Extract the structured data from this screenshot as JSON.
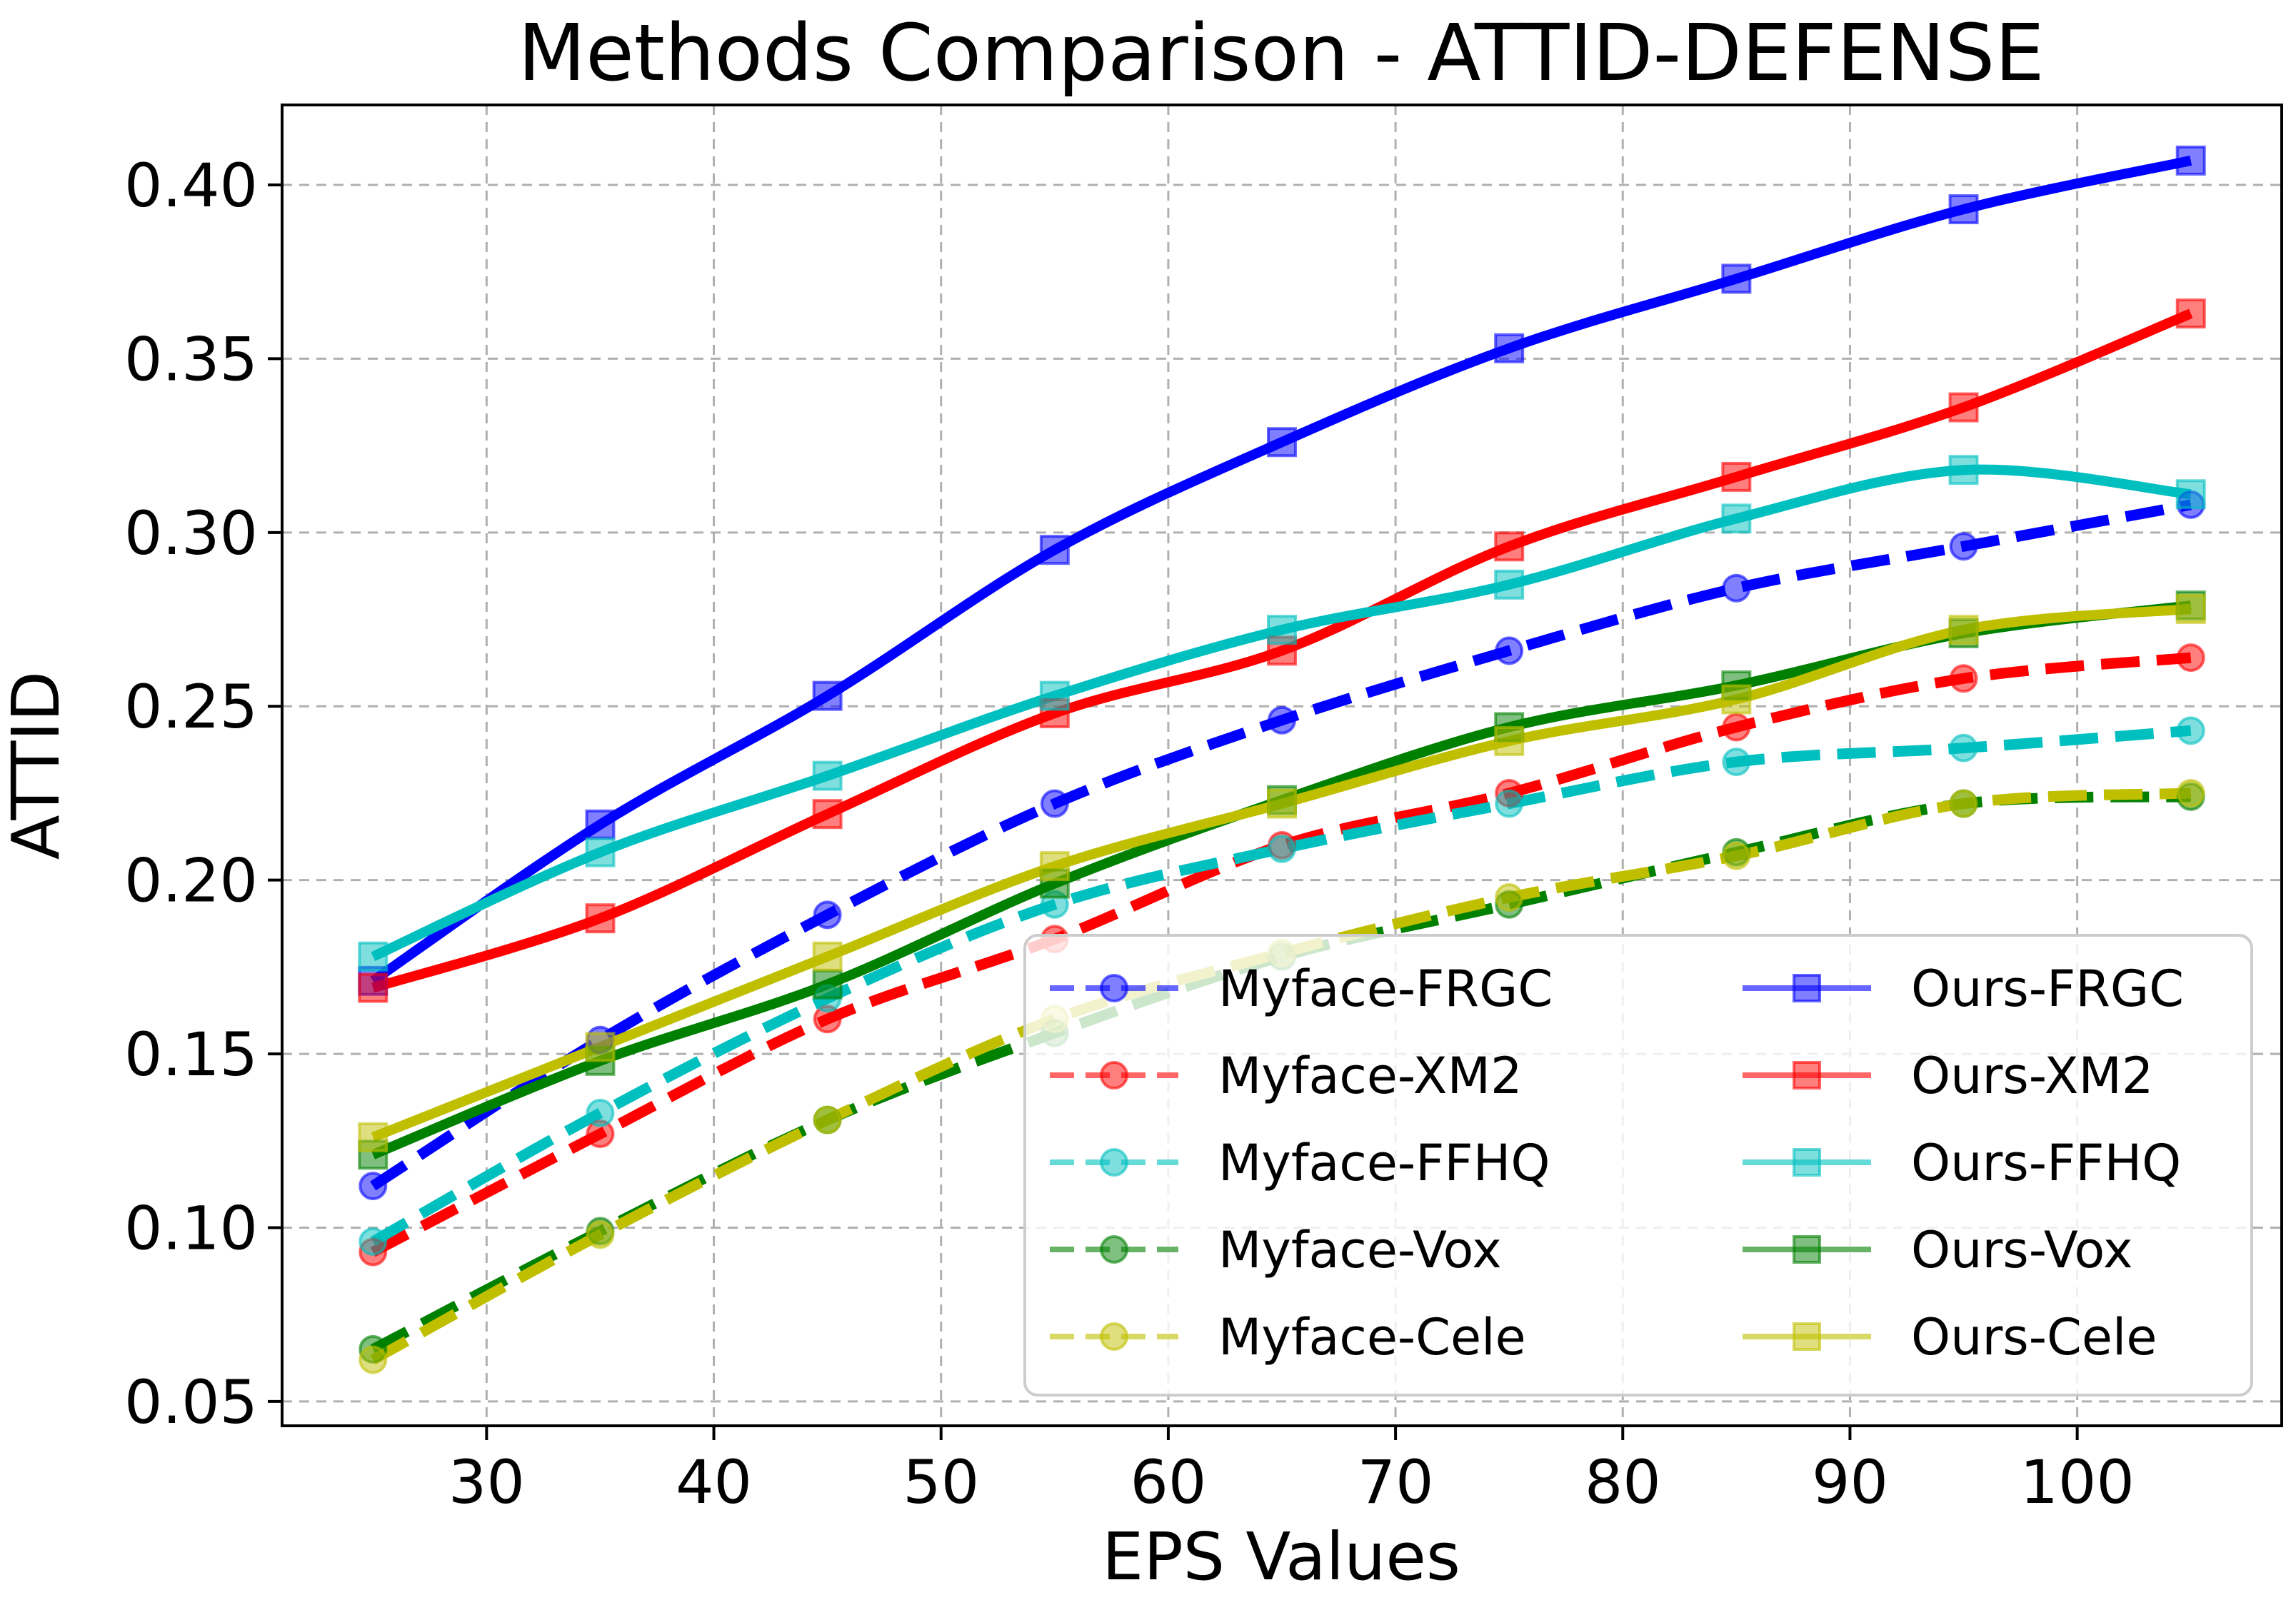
{
  "chart_data": {
    "type": "line",
    "title": "Methods Comparison - ATTID-DEFENSE",
    "xlabel": "EPS Values",
    "ylabel": "ATTID",
    "xlim": [
      21,
      109
    ],
    "ylim": [
      0.043,
      0.423
    ],
    "xticks": [
      30,
      40,
      50,
      60,
      70,
      80,
      90,
      100
    ],
    "yticks": [
      0.05,
      0.1,
      0.15,
      0.2,
      0.25,
      0.3,
      0.35,
      0.4
    ],
    "grid": true,
    "legend_position": "lower-right",
    "x": [
      25,
      35,
      45,
      55,
      65,
      75,
      85,
      95,
      105
    ],
    "series": [
      {
        "name": "Myface-FRGC",
        "color": "#0000ff",
        "style": "dashed",
        "marker": "circle",
        "values": [
          0.112,
          0.154,
          0.19,
          0.222,
          0.246,
          0.266,
          0.284,
          0.296,
          0.308
        ]
      },
      {
        "name": "Myface-XM2",
        "color": "#ff0000",
        "style": "dashed",
        "marker": "circle",
        "values": [
          0.093,
          0.127,
          0.16,
          0.183,
          0.21,
          0.225,
          0.244,
          0.258,
          0.264
        ]
      },
      {
        "name": "Myface-FFHQ",
        "color": "#00bfbf",
        "style": "dashed",
        "marker": "circle",
        "values": [
          0.096,
          0.133,
          0.166,
          0.193,
          0.209,
          0.222,
          0.234,
          0.238,
          0.243
        ]
      },
      {
        "name": "Myface-Vox",
        "color": "#008000",
        "style": "dashed",
        "marker": "circle",
        "values": [
          0.065,
          0.099,
          0.131,
          0.156,
          0.178,
          0.193,
          0.208,
          0.222,
          0.224
        ]
      },
      {
        "name": "Myface-Cele",
        "color": "#bfbf00",
        "style": "dashed",
        "marker": "circle",
        "values": [
          0.062,
          0.098,
          0.131,
          0.16,
          0.179,
          0.195,
          0.207,
          0.222,
          0.225
        ]
      },
      {
        "name": "Ours-FRGC",
        "color": "#0000ff",
        "style": "solid",
        "marker": "square",
        "values": [
          0.171,
          0.216,
          0.253,
          0.295,
          0.326,
          0.353,
          0.373,
          0.393,
          0.407
        ]
      },
      {
        "name": "Ours-XM2",
        "color": "#ff0000",
        "style": "solid",
        "marker": "square",
        "values": [
          0.169,
          0.189,
          0.219,
          0.248,
          0.266,
          0.296,
          0.316,
          0.336,
          0.363
        ]
      },
      {
        "name": "Ours-FFHQ",
        "color": "#00bfbf",
        "style": "solid",
        "marker": "square",
        "values": [
          0.178,
          0.208,
          0.23,
          0.253,
          0.272,
          0.285,
          0.304,
          0.318,
          0.311
        ]
      },
      {
        "name": "Ours-Vox",
        "color": "#008000",
        "style": "solid",
        "marker": "square",
        "values": [
          0.121,
          0.148,
          0.17,
          0.199,
          0.223,
          0.244,
          0.256,
          0.271,
          0.279
        ]
      },
      {
        "name": "Ours-Cele",
        "color": "#bfbf00",
        "style": "solid",
        "marker": "square",
        "values": [
          0.126,
          0.152,
          0.178,
          0.204,
          0.222,
          0.24,
          0.252,
          0.272,
          0.278
        ]
      }
    ]
  }
}
